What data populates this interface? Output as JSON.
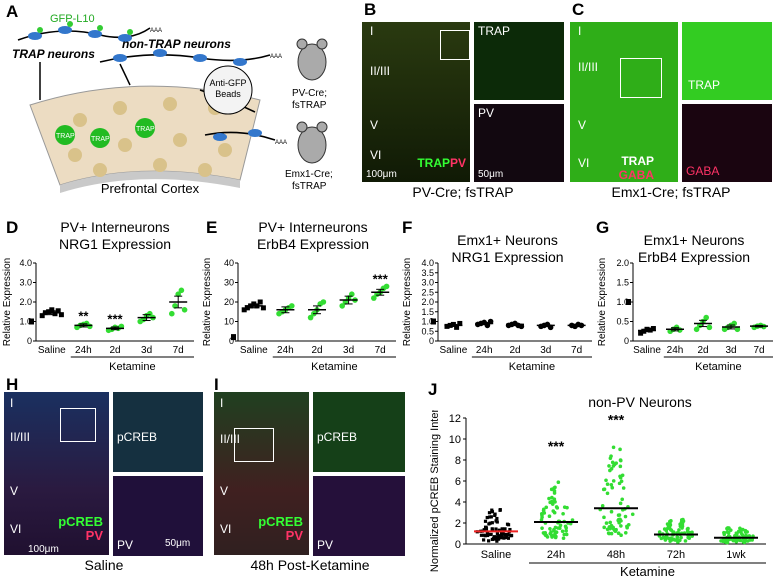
{
  "panel_letters": {
    "a": "A",
    "b": "B",
    "c": "C",
    "d": "D",
    "e": "E",
    "f": "F",
    "g": "G",
    "h": "H",
    "i": "I",
    "j": "J"
  },
  "schematic": {
    "gfp": "GFP-L10",
    "trap_neurons": "TRAP neurons",
    "non_trap": "non-TRAP neurons",
    "trap_tag": "TRAP",
    "beads": "Anti-GFP Beads",
    "pv_mouse": "PV-Cre; fsTRAP",
    "emx_mouse": "Emx1-Cre; fsTRAP",
    "cortex": "Prefrontal Cortex",
    "aaa": "AAA"
  },
  "micro": {
    "layers": [
      "I",
      "II/III",
      "V",
      "VI"
    ],
    "trap": "TRAP",
    "pv": "PV",
    "gaba": "GABA",
    "pcreb": "pCREB",
    "scale_100": "100μm",
    "scale_50": "50μm",
    "b_caption": "PV-Cre; fsTRAP",
    "c_caption": "Emx1-Cre; fsTRAP",
    "h_caption": "Saline",
    "i_caption": "48h Post-Ketamine"
  },
  "chart_data": [
    {
      "panel": "D",
      "type": "scatter",
      "title_line1": "PV+ Interneurons",
      "title_line2": "NRG1 Expression",
      "ylabel": "Relative Expression",
      "xlabel": "Ketamine",
      "categories": [
        "Saline",
        "24h",
        "2d",
        "3d",
        "7d"
      ],
      "ylim": [
        0,
        4
      ],
      "yticks": [
        0,
        1,
        2,
        3,
        4
      ],
      "means": [
        1.45,
        0.8,
        0.65,
        1.2,
        2.0
      ],
      "sem": [
        0.1,
        0.08,
        0.07,
        0.15,
        0.3
      ],
      "significance": [
        "",
        "**",
        "***",
        "",
        ""
      ],
      "points": [
        [
          1.3,
          1.45,
          1.5,
          1.6,
          1.4,
          1.55,
          1.35
        ],
        [
          0.7,
          0.8,
          0.85,
          0.9,
          0.75
        ],
        [
          0.55,
          0.6,
          0.7,
          0.65,
          0.75
        ],
        [
          1.0,
          1.1,
          1.3,
          1.4,
          1.2
        ],
        [
          1.4,
          1.8,
          2.4,
          2.6,
          1.6
        ]
      ],
      "baseline_marker": 1
    },
    {
      "panel": "E",
      "type": "scatter",
      "title_line1": "PV+ Interneurons",
      "title_line2": "ErbB4 Expression",
      "ylabel": "Relative Expression",
      "xlabel": "Ketamine",
      "categories": [
        "Saline",
        "24h",
        "2d",
        "3d",
        "7d"
      ],
      "ylim": [
        0,
        40
      ],
      "yticks": [
        0,
        10,
        20,
        30,
        40
      ],
      "means": [
        18,
        16,
        16,
        21,
        25
      ],
      "sem": [
        1,
        1.5,
        2,
        2,
        1.5
      ],
      "significance": [
        "",
        "",
        "",
        "",
        "***"
      ],
      "points": [
        [
          16,
          17,
          18,
          19,
          18,
          20,
          17
        ],
        [
          14,
          15,
          16,
          17,
          18
        ],
        [
          12,
          14,
          16,
          19,
          20
        ],
        [
          18,
          20,
          22,
          24,
          21
        ],
        [
          22,
          24,
          25,
          27,
          28
        ]
      ],
      "baseline_marker": 2
    },
    {
      "panel": "F",
      "type": "scatter",
      "title_line1": "Emx1+ Neurons",
      "title_line2": "NRG1 Expression",
      "ylabel": "Relative Expression",
      "xlabel": "Ketamine",
      "categories": [
        "Saline",
        "24h",
        "2d",
        "3d",
        "7d"
      ],
      "ylim": [
        0,
        4
      ],
      "yticks": [
        0,
        0.5,
        1.0,
        1.5,
        2.0,
        2.5,
        3.0,
        3.5,
        4.0
      ],
      "means": [
        0.8,
        0.9,
        0.85,
        0.8,
        0.8
      ],
      "sem": [
        0.05,
        0.05,
        0.05,
        0.05,
        0.05
      ],
      "significance": [
        "",
        "",
        "",
        "",
        ""
      ],
      "points": [
        [
          0.75,
          0.8,
          0.85,
          0.7,
          0.9
        ],
        [
          0.85,
          0.9,
          0.95,
          0.8,
          1.0
        ],
        [
          0.8,
          0.85,
          0.9,
          0.8,
          0.75
        ],
        [
          0.75,
          0.8,
          0.85,
          0.7
        ],
        [
          0.8,
          0.75,
          0.85,
          0.8
        ]
      ],
      "baseline_marker": 1
    },
    {
      "panel": "G",
      "type": "scatter",
      "title_line1": "Emx1+ Neurons",
      "title_line2": "ErbB4 Expression",
      "ylabel": "Relative Expression",
      "xlabel": "Ketamine",
      "categories": [
        "Saline",
        "24h",
        "2d",
        "3d",
        "7d"
      ],
      "ylim": [
        0,
        2
      ],
      "yticks": [
        0,
        0.5,
        1.0,
        1.5,
        2.0
      ],
      "means": [
        0.27,
        0.3,
        0.45,
        0.36,
        0.38
      ],
      "sem": [
        0.03,
        0.04,
        0.08,
        0.05,
        0.02
      ],
      "significance": [
        "",
        "",
        "",
        "",
        ""
      ],
      "points": [
        [
          0.2,
          0.25,
          0.3,
          0.28,
          0.32
        ],
        [
          0.25,
          0.3,
          0.35,
          0.28
        ],
        [
          0.3,
          0.4,
          0.5,
          0.6,
          0.35
        ],
        [
          0.3,
          0.35,
          0.4,
          0.45,
          0.3
        ],
        [
          0.35,
          0.38,
          0.4,
          0.37
        ]
      ],
      "baseline_marker": 1
    },
    {
      "panel": "J",
      "type": "scatter",
      "title": "non-PV Neurons",
      "ylabel": "Normalized pCREB Staining Intensity",
      "xlabel": "Ketamine",
      "categories": [
        "Saline",
        "24h",
        "48h",
        "72h",
        "1wk"
      ],
      "ylim": [
        0,
        12
      ],
      "yticks": [
        0,
        2,
        4,
        6,
        8,
        10,
        12
      ],
      "means": [
        1.2,
        2.1,
        3.4,
        0.9,
        0.6
      ],
      "significance": [
        "",
        "***",
        "***",
        "",
        ""
      ],
      "spread_max": [
        9.5,
        8.5,
        11,
        3.5,
        4
      ],
      "colors": [
        "#000000",
        "#33dd33",
        "#33dd33",
        "#33dd33",
        "#33dd33"
      ]
    }
  ]
}
